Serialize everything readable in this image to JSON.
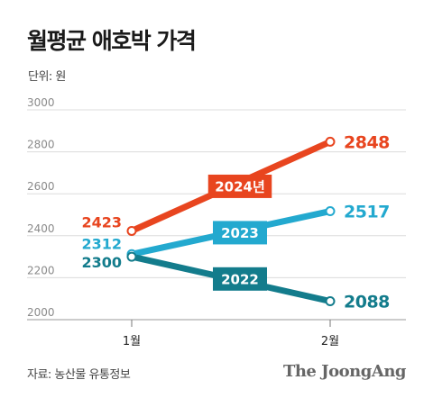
{
  "header": {
    "title": "월평균 애호박 가격",
    "unit": "단위: 원"
  },
  "footer": {
    "source": "자료: 농산물 유통정보",
    "brand": "The JoongAng"
  },
  "chart_data": {
    "type": "line",
    "categories": [
      "1월",
      "2월"
    ],
    "yticks": [
      2000,
      2200,
      2400,
      2600,
      2800,
      3000
    ],
    "ylim": [
      2000,
      3000
    ],
    "grid": true,
    "series": [
      {
        "name": "2024년",
        "values": [
          2423,
          2848
        ],
        "color": "#e8451f"
      },
      {
        "name": "2023",
        "values": [
          2312,
          2517
        ],
        "color": "#23a9cf"
      },
      {
        "name": "2022",
        "values": [
          2300,
          2088
        ],
        "color": "#137c8c"
      }
    ]
  }
}
